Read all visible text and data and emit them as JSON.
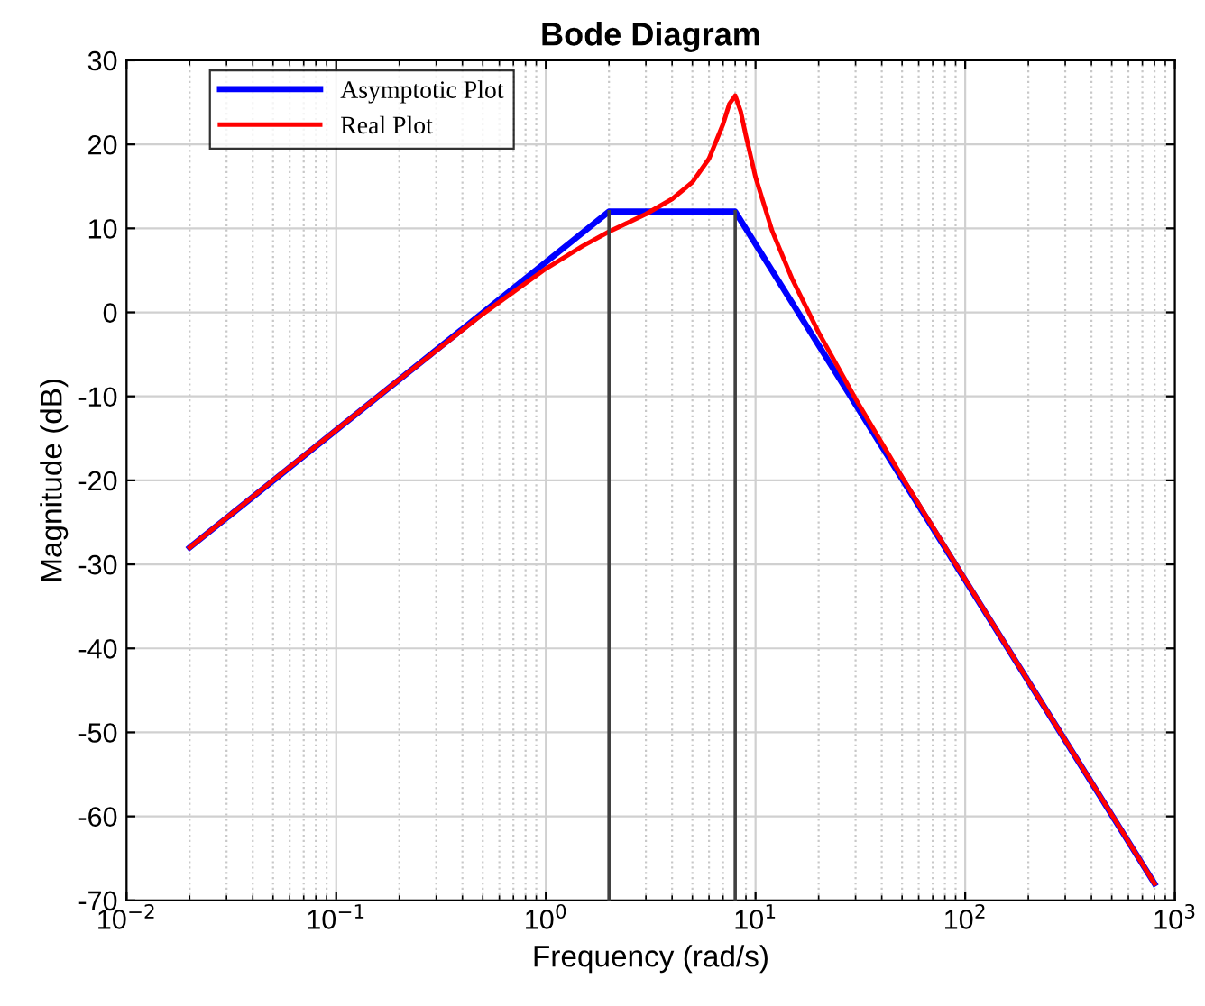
{
  "chart_data": {
    "type": "line",
    "title": "Bode Diagram",
    "xlabel": "Frequency (rad/s)",
    "ylabel": "Magnitude (dB)",
    "log": "x",
    "grid": true,
    "legend": "top left",
    "marker": "none",
    "line_style": "solid",
    "xlim": [
      0.01,
      1000
    ],
    "ylim": [
      -70,
      30
    ],
    "xticks": [
      {
        "value": 0.01,
        "label": "10$^{−2}$"
      },
      {
        "value": 0.1,
        "label": "10$^{−1}$"
      },
      {
        "value": 1,
        "label": "10$^{0}$"
      },
      {
        "value": 10,
        "label": "10$^{1}$"
      },
      {
        "value": 100,
        "label": "10$^{2}$"
      },
      {
        "value": 1000,
        "label": "10$^{3}$"
      }
    ],
    "yticks": [
      -70,
      -60,
      -50,
      -40,
      -30,
      -20,
      -10,
      0,
      10,
      20,
      30
    ],
    "series": [
      {
        "name": "Asymptotic Plot",
        "color": "#0000ff",
        "x": [
          0.02,
          2,
          8,
          800
        ],
        "values": [
          -28,
          12,
          12,
          -68
        ]
      },
      {
        "name": "Real Plot",
        "color": "#ff0000",
        "x": [
          0.02,
          0.05,
          0.1,
          0.2,
          0.5,
          1,
          1.5,
          2,
          3,
          4,
          5,
          6,
          7,
          7.5,
          8,
          8.5,
          9,
          10,
          12,
          15,
          20,
          30,
          50,
          100,
          200,
          500,
          800
        ],
        "values": [
          -28.0,
          -20.0,
          -14.0,
          -8.0,
          -0.2,
          5.2,
          7.9,
          9.6,
          11.7,
          13.5,
          15.5,
          18.3,
          22.4,
          24.8,
          25.8,
          23.9,
          21.0,
          16.1,
          9.7,
          3.9,
          -2.4,
          -10.3,
          -19.6,
          -31.8,
          -43.9,
          -59.8,
          -68.0
        ]
      },
      {
        "color": "#404040",
        "x": [
          2,
          2
        ],
        "values": [
          -70,
          12
        ]
      },
      {
        "color": "#404040",
        "x": [
          8,
          8
        ],
        "values": [
          -70,
          12
        ]
      }
    ]
  }
}
